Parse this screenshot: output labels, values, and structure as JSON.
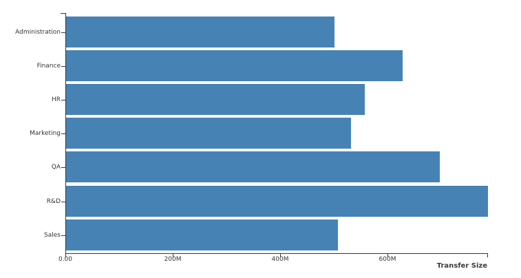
{
  "chart_data": {
    "type": "bar",
    "orientation": "horizontal",
    "title": "",
    "xlabel": "Transfer Size",
    "ylabel": "",
    "categories": [
      "Administration",
      "Finance",
      "HR",
      "Marketing",
      "QA",
      "R&D",
      "Sales"
    ],
    "values": [
      500,
      627,
      557,
      531,
      696,
      786,
      506
    ],
    "value_unit": "M",
    "xlim": [
      0,
      786
    ],
    "x_ticks": [
      {
        "value": 0,
        "label": "0.00"
      },
      {
        "value": 200,
        "label": "200M"
      },
      {
        "value": 400,
        "label": "400M"
      },
      {
        "value": 600,
        "label": "600M"
      },
      {
        "value": 786,
        "label": ""
      }
    ],
    "grid": false,
    "legend": "none",
    "bar_color": "#4682B4",
    "axis_color": "#333333",
    "label_color": "#333333"
  }
}
